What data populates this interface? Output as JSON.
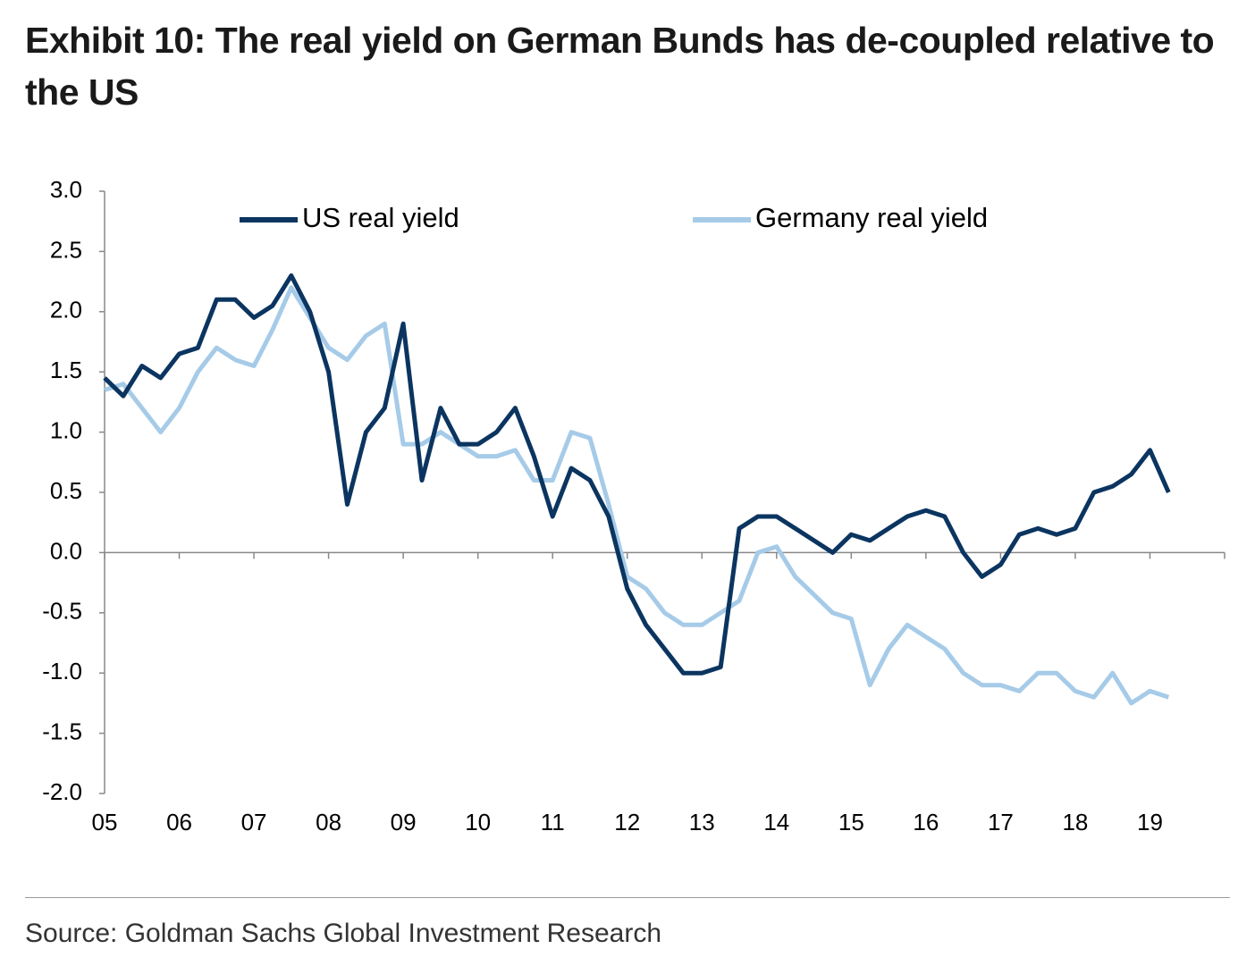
{
  "chart_data": {
    "type": "line",
    "title": "Exhibit 10: The real yield on German Bunds has de-coupled relative to the US",
    "source": "Source: Goldman Sachs Global Investment Research",
    "x": [
      5.0,
      5.25,
      5.5,
      5.75,
      6.0,
      6.25,
      6.5,
      6.75,
      7.0,
      7.25,
      7.5,
      7.75,
      8.0,
      8.25,
      8.5,
      8.75,
      9.0,
      9.25,
      9.5,
      9.75,
      10.0,
      10.25,
      10.5,
      10.75,
      11.0,
      11.25,
      11.5,
      11.75,
      12.0,
      12.25,
      12.5,
      12.75,
      13.0,
      13.25,
      13.5,
      13.75,
      14.0,
      14.25,
      14.5,
      14.75,
      15.0,
      15.25,
      15.5,
      15.75,
      16.0,
      16.25,
      16.5,
      16.75,
      17.0,
      17.25,
      17.5,
      17.75,
      18.0,
      18.25,
      18.5,
      18.75,
      19.0,
      19.25
    ],
    "series": [
      {
        "name": "US real yield",
        "color": "#0b3560",
        "values": [
          1.45,
          1.3,
          1.55,
          1.45,
          1.65,
          1.7,
          2.1,
          2.1,
          1.95,
          2.05,
          2.3,
          2.0,
          1.5,
          0.4,
          1.0,
          1.2,
          1.9,
          0.6,
          1.2,
          0.9,
          0.9,
          1.0,
          1.2,
          0.8,
          0.3,
          0.7,
          0.6,
          0.3,
          -0.3,
          -0.6,
          -0.8,
          -1.0,
          -1.0,
          -0.95,
          0.2,
          0.3,
          0.3,
          0.2,
          0.1,
          0.0,
          0.15,
          0.1,
          0.2,
          0.3,
          0.35,
          0.3,
          0.0,
          -0.2,
          -0.1,
          0.15,
          0.2,
          0.15,
          0.2,
          0.5,
          0.55,
          0.65,
          0.85,
          0.5
        ]
      },
      {
        "name": "Germany real yield",
        "color": "#a6cbe8",
        "values": [
          1.35,
          1.4,
          1.2,
          1.0,
          1.2,
          1.5,
          1.7,
          1.6,
          1.55,
          1.85,
          2.2,
          1.95,
          1.7,
          1.6,
          1.8,
          1.9,
          0.9,
          0.9,
          1.0,
          0.9,
          0.8,
          0.8,
          0.85,
          0.6,
          0.6,
          1.0,
          0.95,
          0.4,
          -0.2,
          -0.3,
          -0.5,
          -0.6,
          -0.6,
          -0.5,
          -0.4,
          0.0,
          0.05,
          -0.2,
          -0.35,
          -0.5,
          -0.55,
          -1.1,
          -0.8,
          -0.6,
          -0.7,
          -0.8,
          -1.0,
          -1.1,
          -1.1,
          -1.15,
          -1.0,
          -1.0,
          -1.15,
          -1.2,
          -1.0,
          -1.25,
          -1.15,
          -1.2
        ]
      }
    ],
    "xlim": [
      5,
      20
    ],
    "xticks": [
      {
        "value": 5,
        "label": "05"
      },
      {
        "value": 6,
        "label": "06"
      },
      {
        "value": 7,
        "label": "07"
      },
      {
        "value": 8,
        "label": "08"
      },
      {
        "value": 9,
        "label": "09"
      },
      10,
      11,
      12,
      13,
      14,
      15,
      16,
      17,
      18,
      19
    ],
    "ylim": [
      -2,
      3
    ],
    "yticks": [
      {
        "value": 3,
        "label": "3.0"
      },
      2.5,
      {
        "value": 2,
        "label": "2.0"
      },
      1.5,
      {
        "value": 1,
        "label": "1.0"
      },
      0.5,
      {
        "value": 0,
        "label": "0.0"
      },
      -0.5,
      {
        "value": -1,
        "label": "-1.0"
      },
      -1.5,
      {
        "value": -2,
        "label": "-2.0"
      }
    ],
    "legend": "top",
    "grid": false
  }
}
